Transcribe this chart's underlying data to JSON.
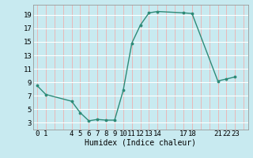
{
  "x": [
    0,
    1,
    4,
    5,
    6,
    7,
    8,
    9,
    10,
    11,
    12,
    13,
    14,
    17,
    18,
    21,
    22,
    23
  ],
  "y": [
    8.5,
    7.2,
    6.2,
    4.5,
    3.3,
    3.5,
    3.4,
    3.4,
    7.8,
    14.8,
    17.5,
    19.3,
    19.5,
    19.3,
    19.2,
    9.2,
    9.5,
    9.8
  ],
  "xtick_positions": [
    0,
    1,
    4,
    5,
    6,
    7,
    8,
    9,
    10,
    11,
    12,
    13,
    14,
    17,
    18,
    21,
    22,
    23
  ],
  "xtick_labels": [
    "0",
    "1",
    "4",
    "5",
    "6",
    "7",
    "8",
    "9",
    "10",
    "11",
    "12",
    "13",
    "14",
    "17",
    "18",
    "21",
    "22",
    "23"
  ],
  "ytick_positions": [
    3,
    5,
    7,
    9,
    11,
    13,
    15,
    17,
    19
  ],
  "ytick_labels": [
    "3",
    "5",
    "7",
    "9",
    "11",
    "13",
    "15",
    "17",
    "19"
  ],
  "ylim": [
    2.0,
    20.5
  ],
  "xlim": [
    -0.5,
    24.5
  ],
  "line_color": "#2d8b78",
  "bg_color": "#c8eaf0",
  "grid_vertical_color": "#e8b8b8",
  "grid_horizontal_color": "#ffffff",
  "xlabel": "Humidex (Indice chaleur)",
  "xlabel_fontsize": 7,
  "tick_fontsize": 6.5
}
